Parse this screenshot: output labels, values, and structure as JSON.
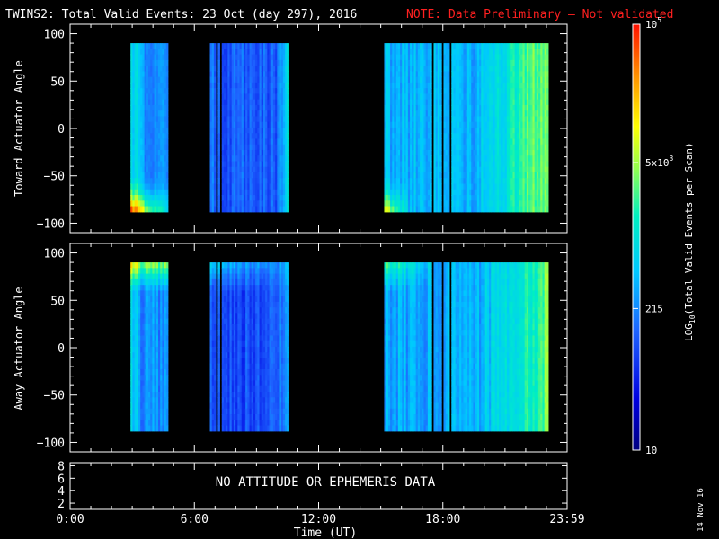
{
  "header": {
    "title": "TWINS2: Total Valid Events: 23 Oct (day 297), 2016",
    "note": "NOTE: Data Preliminary — Not validated"
  },
  "footer": {
    "date_stamp": "14 Nov 16"
  },
  "colors": {
    "note": "#ff2020",
    "background": "#000000",
    "frame": "#ffffff"
  },
  "chart_data": [
    {
      "type": "heatmap",
      "panel": "top",
      "ylabel": "Toward Actuator Angle",
      "ylim": [
        -110,
        110
      ],
      "yticks": [
        -100,
        -50,
        0,
        50,
        100
      ],
      "y_extent": [
        -88,
        90
      ],
      "xlim_hours": [
        0,
        24
      ],
      "segments": [
        {
          "start": "2:55",
          "end": "4:40",
          "base_log": 2.45,
          "low_angle_boost": 2.3
        },
        {
          "start": "6:45",
          "end": "10:30",
          "base_log": 2.1,
          "low_angle_boost": 0.0
        },
        {
          "start": "15:10",
          "end": "23:00",
          "base_log": 2.6,
          "low_angle_boost": 1.6
        }
      ],
      "data_gaps": [
        "7:02",
        "7:12",
        "17:30",
        "17:58",
        "18:20"
      ]
    },
    {
      "type": "heatmap",
      "panel": "middle",
      "ylabel": "Away Actuator Angle",
      "ylim": [
        -110,
        110
      ],
      "yticks": [
        -100,
        -50,
        0,
        50,
        100
      ],
      "y_extent": [
        -88,
        90
      ],
      "xlim_hours": [
        0,
        24
      ],
      "segments": [
        {
          "start": "2:55",
          "end": "4:40",
          "base_log": 2.35,
          "high_angle_boost": 1.3
        },
        {
          "start": "6:45",
          "end": "10:30",
          "base_log": 2.0,
          "high_angle_boost": 0.8
        },
        {
          "start": "15:10",
          "end": "23:00",
          "base_log": 2.5,
          "high_angle_boost": 0.9
        }
      ],
      "data_gaps": [
        "7:02",
        "7:12",
        "17:30",
        "17:58",
        "18:20"
      ]
    },
    {
      "type": "line",
      "panel": "bottom",
      "ylim": [
        1,
        8.5
      ],
      "yticks": [
        2,
        4,
        6,
        8
      ],
      "message": "NO ATTITUDE OR EPHEMERIS DATA"
    }
  ],
  "x_axis": {
    "label": "Time (UT)",
    "ticks": [
      "0:00",
      "6:00",
      "12:00",
      "18:00",
      "23:59"
    ],
    "tick_hours": [
      0,
      6,
      12,
      18,
      24
    ]
  },
  "colorbar": {
    "label": "LOG10(Total Valid Events per Scan)",
    "label_main": "LOG",
    "label_sub": "10",
    "label_rest": "(Total Valid Events per Scan)",
    "log_range": [
      1,
      5
    ],
    "ticks": [
      {
        "label": "10",
        "log": 1.0
      },
      {
        "label": "215",
        "log": 2.33
      },
      {
        "label": "5x10",
        "sup": "3",
        "log": 3.7
      },
      {
        "label": "10",
        "sup": "5",
        "log": 5.0
      }
    ]
  }
}
